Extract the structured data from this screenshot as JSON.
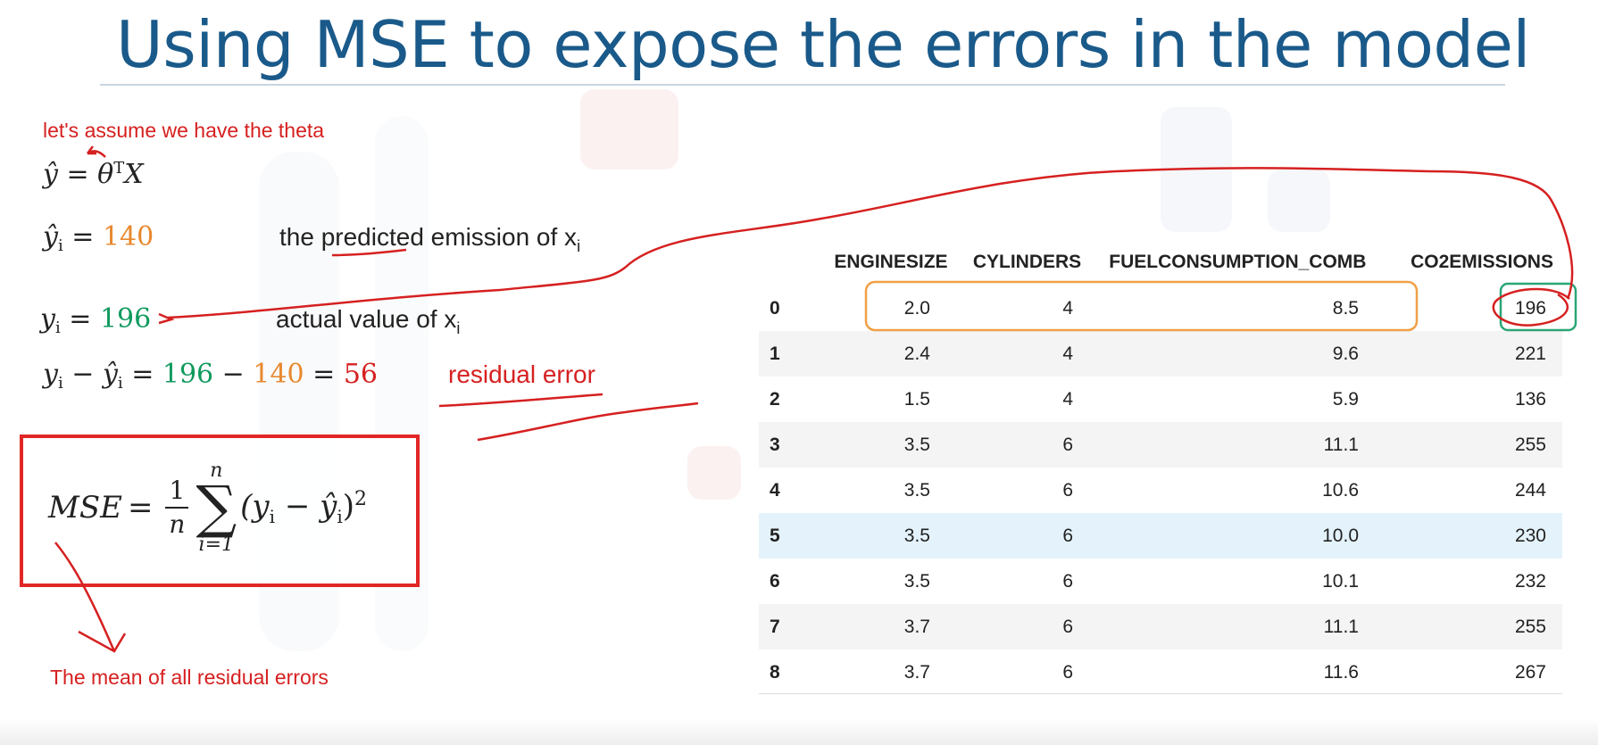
{
  "slide": {
    "title": "Using MSE to expose the errors in the model"
  },
  "annotations": {
    "assume_theta": "let's assume we have the theta",
    "residual_error": "residual error",
    "mean_of_residuals": "The mean of all residual errors"
  },
  "equations": {
    "model": {
      "lhs": "ŷ",
      "rhs_theta": "θ",
      "rhs_sup": "T",
      "rhs_x": "X"
    },
    "predicted": {
      "lhs": "ŷ",
      "sub": "i",
      "value": "140",
      "desc": "the predicted emission of x",
      "desc_sub": "i"
    },
    "actual": {
      "lhs": "y",
      "sub": "i",
      "value": "196",
      "desc": "actual value of x",
      "desc_sub": "i"
    },
    "residual": {
      "a": "y",
      "b": "ŷ",
      "sub": "i",
      "v1": "196",
      "v2": "140",
      "result": "56"
    },
    "mse": {
      "lhs": "MSE",
      "frac_num": "1",
      "frac_den": "n",
      "sum_top": "n",
      "sum_bottom": "i=1",
      "sum_symbol": "∑",
      "term": "(y",
      "term_sub": "i",
      "term_minus": " − ŷ",
      "term_sub2": "i",
      "term_close": ")",
      "exponent": "2"
    }
  },
  "table": {
    "columns": [
      "",
      "ENGINESIZE",
      "CYLINDERS",
      "FUELCONSUMPTION_COMB",
      "CO2EMISSIONS"
    ],
    "rows": [
      {
        "index": "0",
        "enginesize": "2.0",
        "cylinders": "4",
        "fuel": "8.5",
        "co2": "196"
      },
      {
        "index": "1",
        "enginesize": "2.4",
        "cylinders": "4",
        "fuel": "9.6",
        "co2": "221"
      },
      {
        "index": "2",
        "enginesize": "1.5",
        "cylinders": "4",
        "fuel": "5.9",
        "co2": "136"
      },
      {
        "index": "3",
        "enginesize": "3.5",
        "cylinders": "6",
        "fuel": "11.1",
        "co2": "255"
      },
      {
        "index": "4",
        "enginesize": "3.5",
        "cylinders": "6",
        "fuel": "10.6",
        "co2": "244"
      },
      {
        "index": "5",
        "enginesize": "3.5",
        "cylinders": "6",
        "fuel": "10.0",
        "co2": "230"
      },
      {
        "index": "6",
        "enginesize": "3.5",
        "cylinders": "6",
        "fuel": "10.1",
        "co2": "232"
      },
      {
        "index": "7",
        "enginesize": "3.7",
        "cylinders": "6",
        "fuel": "11.1",
        "co2": "255"
      },
      {
        "index": "8",
        "enginesize": "3.7",
        "cylinders": "6",
        "fuel": "11.6",
        "co2": "267"
      }
    ]
  },
  "colors": {
    "title": "#1a5a8a",
    "predicted": "#e8892f",
    "actual": "#109a5e",
    "annotation": "#d62020",
    "mse_box": "#e12626",
    "feature_box": "#f0a046",
    "target_box": "#2aa676"
  }
}
